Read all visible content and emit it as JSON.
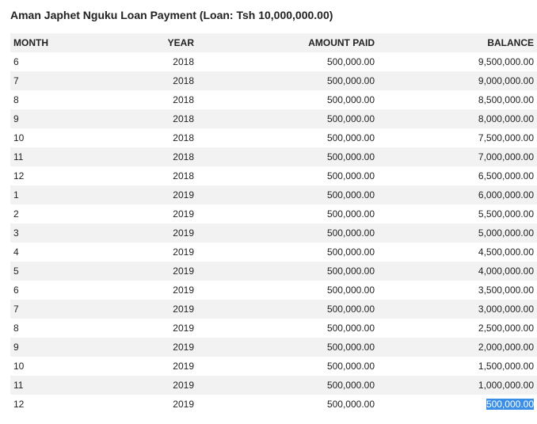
{
  "page": {
    "title": "Aman Japhet Nguku Loan Payment (Loan: Tsh 10,000,000.00)"
  },
  "table": {
    "headers": {
      "month": "MONTH",
      "year": "YEAR",
      "amount_paid": "AMOUNT PAID",
      "balance": "BALANCE"
    },
    "rows": [
      {
        "month": "6",
        "year": "2018",
        "amount_paid": "500,000.00",
        "balance": "9,500,000.00"
      },
      {
        "month": "7",
        "year": "2018",
        "amount_paid": "500,000.00",
        "balance": "9,000,000.00"
      },
      {
        "month": "8",
        "year": "2018",
        "amount_paid": "500,000.00",
        "balance": "8,500,000.00"
      },
      {
        "month": "9",
        "year": "2018",
        "amount_paid": "500,000.00",
        "balance": "8,000,000.00"
      },
      {
        "month": "10",
        "year": "2018",
        "amount_paid": "500,000.00",
        "balance": "7,500,000.00"
      },
      {
        "month": "11",
        "year": "2018",
        "amount_paid": "500,000.00",
        "balance": "7,000,000.00"
      },
      {
        "month": "12",
        "year": "2018",
        "amount_paid": "500,000.00",
        "balance": "6,500,000.00"
      },
      {
        "month": "1",
        "year": "2019",
        "amount_paid": "500,000.00",
        "balance": "6,000,000.00"
      },
      {
        "month": "2",
        "year": "2019",
        "amount_paid": "500,000.00",
        "balance": "5,500,000.00"
      },
      {
        "month": "3",
        "year": "2019",
        "amount_paid": "500,000.00",
        "balance": "5,000,000.00"
      },
      {
        "month": "4",
        "year": "2019",
        "amount_paid": "500,000.00",
        "balance": "4,500,000.00"
      },
      {
        "month": "5",
        "year": "2019",
        "amount_paid": "500,000.00",
        "balance": "4,000,000.00"
      },
      {
        "month": "6",
        "year": "2019",
        "amount_paid": "500,000.00",
        "balance": "3,500,000.00"
      },
      {
        "month": "7",
        "year": "2019",
        "amount_paid": "500,000.00",
        "balance": "3,000,000.00"
      },
      {
        "month": "8",
        "year": "2019",
        "amount_paid": "500,000.00",
        "balance": "2,500,000.00"
      },
      {
        "month": "9",
        "year": "2019",
        "amount_paid": "500,000.00",
        "balance": "2,000,000.00"
      },
      {
        "month": "10",
        "year": "2019",
        "amount_paid": "500,000.00",
        "balance": "1,500,000.00"
      },
      {
        "month": "11",
        "year": "2019",
        "amount_paid": "500,000.00",
        "balance": "1,000,000.00"
      },
      {
        "month": "12",
        "year": "2019",
        "amount_paid": "500,000.00",
        "balance": "500,000.00",
        "balance_selected": true
      }
    ]
  },
  "colors": {
    "stripe": "#f2f2f2",
    "text": "#222222",
    "selection": "#3b8ee8"
  }
}
